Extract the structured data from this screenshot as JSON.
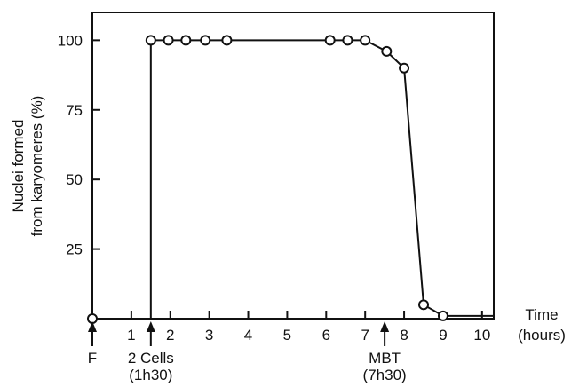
{
  "chart_data": {
    "type": "line",
    "title": "",
    "ylabel_lines": [
      "Nuclei formed",
      "from karyomeres (%)"
    ],
    "xlabel_lines": [
      "Time",
      "(hours)"
    ],
    "xlim": [
      0,
      10.3
    ],
    "ylim": [
      0,
      110
    ],
    "x_ticks": [
      1,
      2,
      3,
      4,
      5,
      6,
      7,
      8,
      9,
      10
    ],
    "y_ticks": [
      25,
      50,
      75,
      100
    ],
    "grid": false,
    "legend": "none",
    "series": [
      {
        "x": [
          0,
          1.5,
          1.5,
          1.95,
          2.4,
          2.9,
          3.45,
          6.1,
          6.55,
          7.0,
          7.55,
          8.0,
          8.5,
          9.0,
          10.3
        ],
        "y": [
          0,
          0,
          100,
          100,
          100,
          100,
          100,
          100,
          100,
          100,
          96,
          90,
          5,
          1,
          1
        ],
        "marker_flags": [
          1,
          0,
          1,
          1,
          1,
          1,
          1,
          1,
          1,
          1,
          1,
          1,
          1,
          1,
          0
        ]
      }
    ],
    "annotations": [
      {
        "x": 0,
        "lines": [
          "F"
        ]
      },
      {
        "x": 1.5,
        "lines": [
          "2 Cells",
          "(1h30)"
        ]
      },
      {
        "x": 7.5,
        "lines": [
          "MBT",
          "(7h30)"
        ]
      }
    ]
  }
}
